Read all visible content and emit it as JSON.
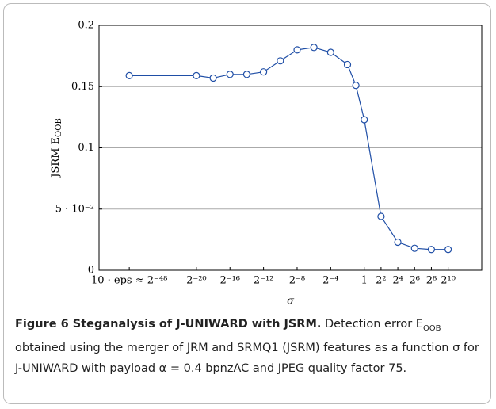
{
  "chart_data": {
    "type": "line",
    "xlabel": "σ",
    "ylabel": "JSRM E_OOB",
    "x": [
      -28,
      -20,
      -18,
      -16,
      -14,
      -12,
      -10,
      -8,
      -6,
      -4,
      -2,
      -1,
      0,
      2,
      4,
      6,
      8,
      10
    ],
    "series": [
      {
        "name": "JSRM",
        "color": "#1f4ea6",
        "values": [
          0.159,
          0.159,
          0.157,
          0.16,
          0.16,
          0.162,
          0.171,
          0.18,
          0.182,
          0.178,
          0.168,
          0.151,
          0.123,
          0.044,
          0.023,
          0.018,
          0.017,
          0.017
        ]
      }
    ],
    "xlim": [
      -31.6,
      14
    ],
    "xticks": [
      {
        "value": -28,
        "label": "10 · eps ≈ 2⁻⁴⁸"
      },
      {
        "value": -20,
        "label": "2⁻²⁰"
      },
      {
        "value": -16,
        "label": "2⁻¹⁶"
      },
      {
        "value": -12,
        "label": "2⁻¹²"
      },
      {
        "value": -8,
        "label": "2⁻⁸"
      },
      {
        "value": -4,
        "label": "2⁻⁴"
      },
      {
        "value": 0,
        "label": "1"
      },
      {
        "value": 2,
        "label": "2²"
      },
      {
        "value": 4,
        "label": "2⁴"
      },
      {
        "value": 6,
        "label": "2⁶"
      },
      {
        "value": 8,
        "label": "2⁸"
      },
      {
        "value": 10,
        "label": "2¹⁰"
      }
    ],
    "ylim": [
      0,
      0.2
    ],
    "yticks": [
      0,
      {
        "value": 0.05,
        "label": "5 · 10⁻²"
      },
      0.1,
      0.15,
      0.2
    ],
    "grid": true
  },
  "caption": {
    "title": "Figure 6 Steganalysis of J-UNIWARD with JSRM.",
    "body_start": "Detection error E",
    "body_subscript": "OOB",
    "body_end": " obtained using the merger of JRM and SRMQ1 (JSRM) features as a function σ for J-UNIWARD with payload α = 0.4 bpnzAC and JPEG quality factor 75."
  }
}
